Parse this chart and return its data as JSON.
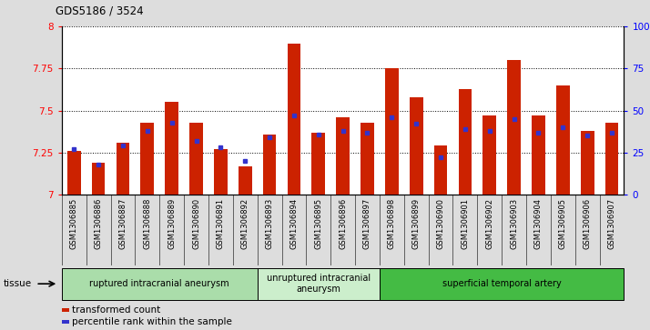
{
  "title": "GDS5186 / 3524",
  "samples": [
    "GSM1306885",
    "GSM1306886",
    "GSM1306887",
    "GSM1306888",
    "GSM1306889",
    "GSM1306890",
    "GSM1306891",
    "GSM1306892",
    "GSM1306893",
    "GSM1306894",
    "GSM1306895",
    "GSM1306896",
    "GSM1306897",
    "GSM1306898",
    "GSM1306899",
    "GSM1306900",
    "GSM1306901",
    "GSM1306902",
    "GSM1306903",
    "GSM1306904",
    "GSM1306905",
    "GSM1306906",
    "GSM1306907"
  ],
  "transformed_count": [
    7.26,
    7.19,
    7.31,
    7.43,
    7.55,
    7.43,
    7.27,
    7.17,
    7.36,
    7.9,
    7.37,
    7.46,
    7.43,
    7.75,
    7.58,
    7.29,
    7.63,
    7.47,
    7.8,
    7.47,
    7.65,
    7.38,
    7.43
  ],
  "percentile_rank": [
    27,
    18,
    29,
    38,
    43,
    32,
    28,
    20,
    34,
    47,
    36,
    38,
    37,
    46,
    42,
    22,
    39,
    38,
    45,
    37,
    40,
    35,
    37
  ],
  "ylim_left": [
    7.0,
    8.0
  ],
  "ylim_right": [
    0,
    100
  ],
  "yticks_left": [
    7.0,
    7.25,
    7.5,
    7.75,
    8.0
  ],
  "yticks_right": [
    0,
    25,
    50,
    75,
    100
  ],
  "ytick_labels_left": [
    "7",
    "7.25",
    "7.5",
    "7.75",
    "8"
  ],
  "ytick_labels_right": [
    "0",
    "25",
    "50",
    "75",
    "100%"
  ],
  "bar_color": "#cc2200",
  "dot_color": "#3333cc",
  "background_color": "#dddddd",
  "plot_bg_color": "#ffffff",
  "xlabel_bg_color": "#cccccc",
  "groups": [
    {
      "label": "ruptured intracranial aneurysm",
      "start": 0,
      "end": 8,
      "color": "#aaddaa"
    },
    {
      "label": "unruptured intracranial\naneurysm",
      "start": 8,
      "end": 13,
      "color": "#cceecc"
    },
    {
      "label": "superficial temporal artery",
      "start": 13,
      "end": 23,
      "color": "#44bb44"
    }
  ],
  "tissue_label": "tissue",
  "legend_items": [
    {
      "label": "transformed count",
      "color": "#cc2200"
    },
    {
      "label": "percentile rank within the sample",
      "color": "#3333cc"
    }
  ]
}
